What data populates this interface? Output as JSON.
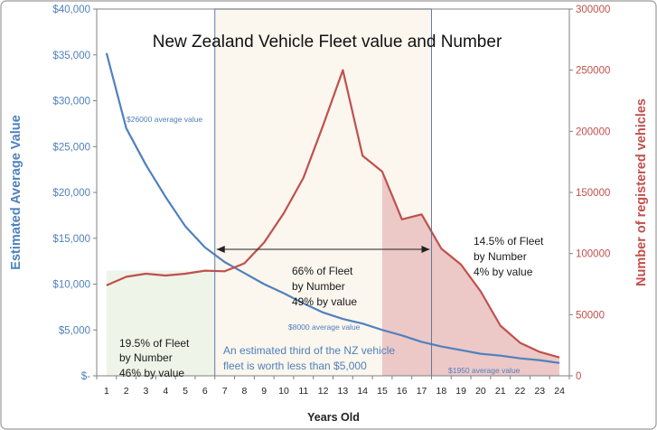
{
  "chart_data": {
    "type": "line",
    "title": "New Zealand Vehicle Fleet value and Number",
    "xlabel": "Years Old",
    "ylabel_left": "Estimated Average Value",
    "ylabel_right": "Number of registered vehicles",
    "x": [
      1,
      2,
      3,
      4,
      5,
      6,
      7,
      8,
      9,
      10,
      11,
      12,
      13,
      14,
      15,
      16,
      17,
      18,
      19,
      20,
      21,
      22,
      23,
      24
    ],
    "x_tick_labels": [
      "1",
      "2",
      "3",
      "4",
      "5",
      "6",
      "7",
      "8",
      "9",
      "10",
      "11",
      "12",
      "13",
      "14",
      "15",
      "16",
      "17",
      "18",
      "19",
      "20",
      "21",
      "22",
      "23",
      "24"
    ],
    "ylim_left": [
      0,
      40000
    ],
    "ylim_right": [
      0,
      300000
    ],
    "left_tick_labels": [
      "$-",
      "$5,000",
      "$10,000",
      "$15,000",
      "$20,000",
      "$25,000",
      "$30,000",
      "$35,000",
      "$40,000"
    ],
    "right_tick_labels": [
      "0",
      "50000",
      "100000",
      "150000",
      "200000",
      "250000",
      "300000"
    ],
    "series": [
      {
        "axis": "left",
        "color": "#4f81bd",
        "values": [
          35200,
          27000,
          23000,
          19500,
          16300,
          14000,
          12400,
          11200,
          10000,
          9000,
          7900,
          6900,
          6200,
          5700,
          5000,
          4400,
          3700,
          3200,
          2800,
          2400,
          2200,
          1900,
          1700,
          1400
        ]
      },
      {
        "axis": "right",
        "color": "#c0504d",
        "values": [
          74000,
          81000,
          83500,
          82000,
          83500,
          86000,
          85500,
          92000,
          109000,
          133000,
          162000,
          205000,
          250000,
          180000,
          167000,
          128000,
          132000,
          104000,
          91000,
          69000,
          41000,
          27000,
          19500,
          15000
        ]
      }
    ],
    "shaded_regions": [
      {
        "from": 1,
        "to": 6.5,
        "color": "#eef4e8"
      },
      {
        "from": 6.5,
        "to": 17.5,
        "color": "#fbf6ee"
      },
      {
        "from": 15,
        "to": 24,
        "color": "#ecc8c7",
        "follows_series": 1
      }
    ],
    "annotations": {
      "left_region": [
        "19.5% of Fleet",
        "by Number",
        "46% by value"
      ],
      "middle_region": [
        "66% of Fleet",
        "by Number",
        "49% by value"
      ],
      "right_region": [
        "14.5% of Fleet",
        "by Number",
        "4% by value"
      ],
      "third_note": [
        "An estimated third of the NZ vehicle",
        "fleet is worth less than $5,000"
      ],
      "value_26000": "$26000 average value",
      "value_8000": "$8000 average value",
      "value_1950": "$1950 average value"
    },
    "grid": false,
    "legend": "none"
  }
}
